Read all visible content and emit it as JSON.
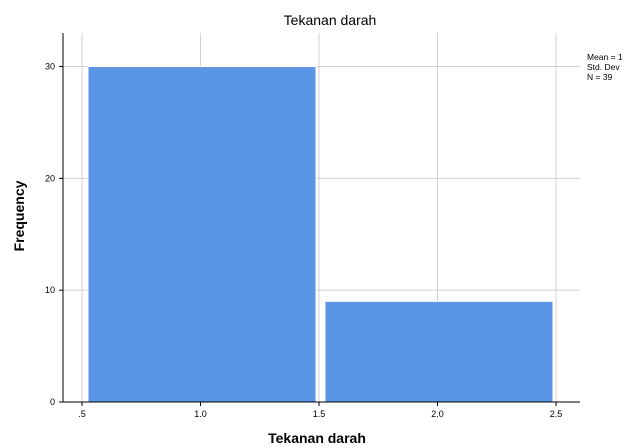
{
  "chart_data": {
    "type": "bar",
    "title": "Tekanan darah",
    "xlabel": "Tekanan darah",
    "ylabel": "Frequency",
    "x_ticks": [
      ".5",
      "1.0",
      "1.5",
      "2.0",
      "2.5"
    ],
    "y_ticks": [
      "0",
      "10",
      "20",
      "30"
    ],
    "xlim": [
      0.5,
      2.5
    ],
    "ylim": [
      0,
      33
    ],
    "bins": [
      {
        "start": 0.5,
        "end": 1.5,
        "value": 30
      },
      {
        "start": 1.5,
        "end": 2.5,
        "value": 9
      }
    ],
    "stats": [
      "Mean = 1",
      "Std. Dev",
      "N = 39"
    ],
    "grid": true,
    "bar_color": "#5b96e6",
    "grid_color": "#d0d0d0"
  }
}
